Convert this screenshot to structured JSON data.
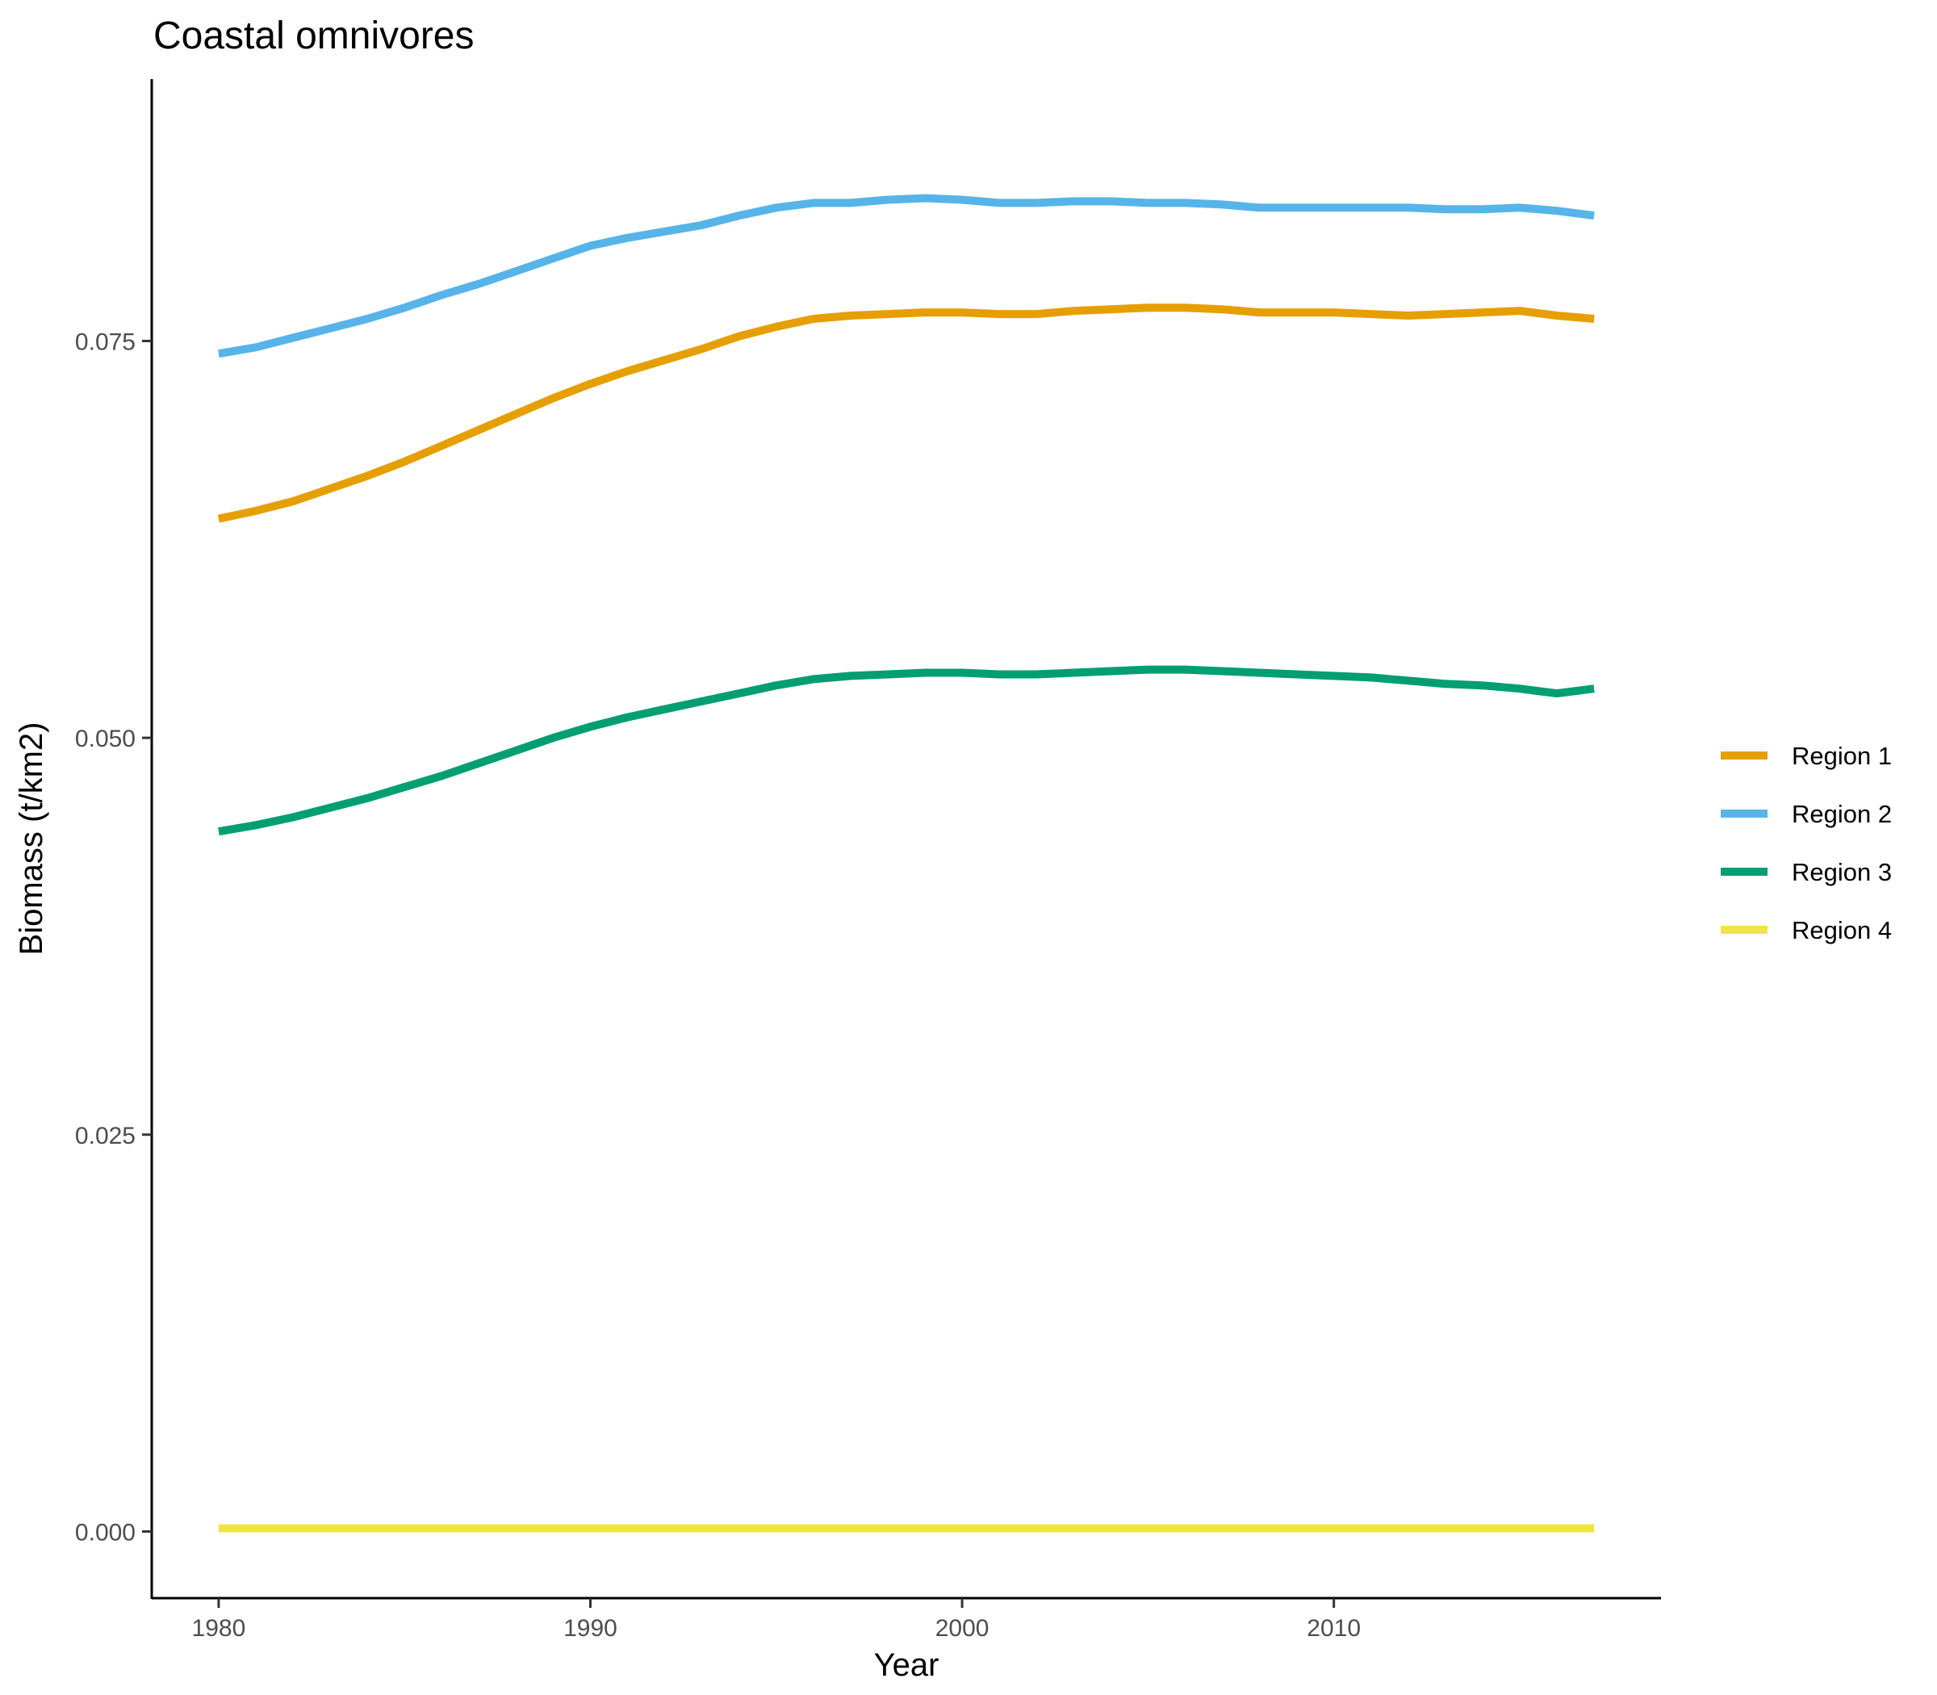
{
  "chart_data": {
    "type": "line",
    "title": "Coastal omnivores",
    "xlabel": "Year",
    "ylabel": "Biomass (t/km2)",
    "xlim": [
      1978.2,
      2018.8
    ],
    "ylim": [
      -0.0042,
      0.0915
    ],
    "x_ticks": [
      1980,
      1990,
      2000,
      2010
    ],
    "y_ticks": [
      0.0,
      0.025,
      0.05,
      0.075
    ],
    "y_tick_labels": [
      "0.000",
      "0.025",
      "0.050",
      "0.075"
    ],
    "grid": false,
    "legend": "right",
    "x": [
      1980,
      1981,
      1982,
      1983,
      1984,
      1985,
      1986,
      1987,
      1988,
      1989,
      1990,
      1991,
      1992,
      1993,
      1994,
      1995,
      1996,
      1997,
      1998,
      1999,
      2000,
      2001,
      2002,
      2003,
      2004,
      2005,
      2006,
      2007,
      2008,
      2009,
      2010,
      2011,
      2012,
      2013,
      2014,
      2015,
      2016,
      2017
    ],
    "series": [
      {
        "name": "Region 1",
        "color": "#E69F00",
        "values": [
          0.0638,
          0.0643,
          0.0649,
          0.0657,
          0.0665,
          0.0674,
          0.0684,
          0.0694,
          0.0704,
          0.0714,
          0.0723,
          0.0731,
          0.0738,
          0.0745,
          0.0753,
          0.0759,
          0.0764,
          0.0766,
          0.0767,
          0.0768,
          0.0768,
          0.0767,
          0.0767,
          0.0769,
          0.077,
          0.0771,
          0.0771,
          0.077,
          0.0768,
          0.0768,
          0.0768,
          0.0767,
          0.0766,
          0.0767,
          0.0768,
          0.0769,
          0.0766,
          0.0764
        ]
      },
      {
        "name": "Region 2",
        "color": "#56B4E9",
        "values": [
          0.0742,
          0.0746,
          0.0752,
          0.0758,
          0.0764,
          0.0771,
          0.0779,
          0.0786,
          0.0794,
          0.0802,
          0.081,
          0.0815,
          0.0819,
          0.0823,
          0.0829,
          0.0834,
          0.0837,
          0.0837,
          0.0839,
          0.084,
          0.0839,
          0.0837,
          0.0837,
          0.0838,
          0.0838,
          0.0837,
          0.0837,
          0.0836,
          0.0834,
          0.0834,
          0.0834,
          0.0834,
          0.0834,
          0.0833,
          0.0833,
          0.0834,
          0.0832,
          0.0829
        ]
      },
      {
        "name": "Region 3",
        "color": "#009E73",
        "values": [
          0.0441,
          0.0445,
          0.045,
          0.0456,
          0.0462,
          0.0469,
          0.0476,
          0.0484,
          0.0492,
          0.05,
          0.0507,
          0.0513,
          0.0518,
          0.0523,
          0.0528,
          0.0533,
          0.0537,
          0.0539,
          0.054,
          0.0541,
          0.0541,
          0.054,
          0.054,
          0.0541,
          0.0542,
          0.0543,
          0.0543,
          0.0542,
          0.0541,
          0.054,
          0.0539,
          0.0538,
          0.0536,
          0.0534,
          0.0533,
          0.0531,
          0.0528,
          0.0531
        ]
      },
      {
        "name": "Region 4",
        "color": "#F0E442",
        "values": [
          0.0002,
          0.0002,
          0.0002,
          0.0002,
          0.0002,
          0.0002,
          0.0002,
          0.0002,
          0.0002,
          0.0002,
          0.0002,
          0.0002,
          0.0002,
          0.0002,
          0.0002,
          0.0002,
          0.0002,
          0.0002,
          0.0002,
          0.0002,
          0.0002,
          0.0002,
          0.0002,
          0.0002,
          0.0002,
          0.0002,
          0.0002,
          0.0002,
          0.0002,
          0.0002,
          0.0002,
          0.0002,
          0.0002,
          0.0002,
          0.0002,
          0.0002,
          0.0002,
          0.0002
        ]
      }
    ]
  }
}
